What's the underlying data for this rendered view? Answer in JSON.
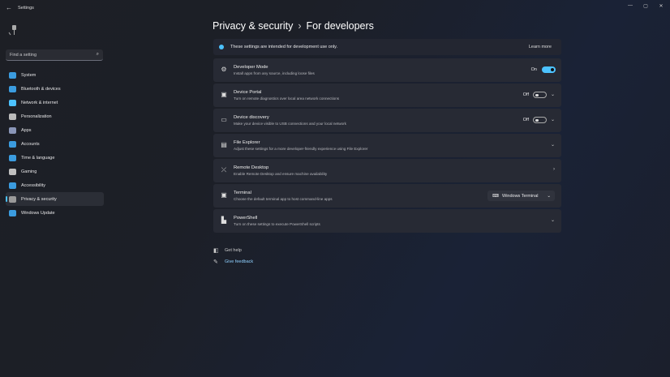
{
  "app": {
    "title": "Settings",
    "back": "←",
    "minimize": "—",
    "maximize": "▢",
    "close": "✕"
  },
  "search": {
    "placeholder": "Find a setting",
    "icon": "search-icon"
  },
  "sidebar": {
    "items": [
      {
        "label": "System",
        "color": "#3b9cdf"
      },
      {
        "label": "Bluetooth & devices",
        "color": "#3b9cdf"
      },
      {
        "label": "Network & internet",
        "color": "#4cc2ff"
      },
      {
        "label": "Personalization",
        "color": "#bbbbbb"
      },
      {
        "label": "Apps",
        "color": "#8a96b8"
      },
      {
        "label": "Accounts",
        "color": "#3b9cdf"
      },
      {
        "label": "Time & language",
        "color": "#3b9cdf"
      },
      {
        "label": "Gaming",
        "color": "#c0c0c0"
      },
      {
        "label": "Accessibility",
        "color": "#3b9cdf"
      },
      {
        "label": "Privacy & security",
        "color": "#9a9a9a",
        "selected": true
      },
      {
        "label": "Windows Update",
        "color": "#3b9cdf"
      }
    ]
  },
  "header": {
    "parent": "Privacy & security",
    "separator": "›",
    "current": "For developers"
  },
  "banner": {
    "text": "These settings are intended for development use only.",
    "link": "Learn more"
  },
  "rows": [
    {
      "title": "Developer Mode",
      "desc": "Install apps from any source, including loose files",
      "icon": "⚙",
      "state": "On",
      "control": "toggle-on"
    },
    {
      "title": "Device Portal",
      "desc": "Turn on remote diagnostics over local area network connections",
      "icon": "▣",
      "state": "Off",
      "control": "toggle-off-expand"
    },
    {
      "title": "Device discovery",
      "desc": "Make your device visible to USB connections and your local network",
      "icon": "▭",
      "state": "Off",
      "control": "toggle-off-expand"
    },
    {
      "title": "File Explorer",
      "desc": "Adjust these settings for a more developer-friendly experience using File Explorer",
      "icon": "▤",
      "control": "expand"
    },
    {
      "title": "Remote Desktop",
      "desc": "Enable Remote Desktop and ensure machine availability",
      "icon": "⤫",
      "control": "navigate"
    },
    {
      "title": "Terminal",
      "desc": "Choose the default terminal app to host command-line apps",
      "icon": "▣",
      "control": "dropdown",
      "value": "Windows Terminal"
    },
    {
      "title": "PowerShell",
      "desc": "Turn on these settings to execute PowerShell scripts",
      "icon": "▙",
      "control": "expand"
    }
  ],
  "footer": {
    "help": "Get help",
    "feedback": "Give feedback"
  },
  "colors": {
    "accent": "#4cc2ff"
  }
}
